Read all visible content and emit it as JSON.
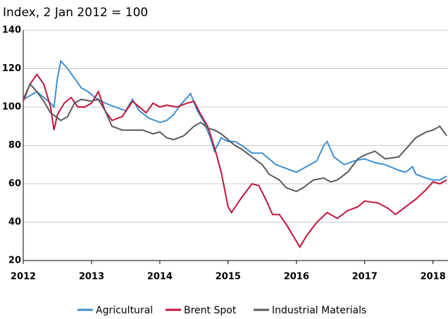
{
  "chart_data": {
    "type": "line",
    "title": "Index, 2 Jan 2012 = 100",
    "xlim": [
      2012,
      2018.22
    ],
    "xticks": [
      2012,
      2013,
      2014,
      2015,
      2016,
      2017,
      2018
    ],
    "ylim": [
      20,
      140
    ],
    "yticks": [
      20,
      40,
      60,
      80,
      100,
      120,
      140
    ],
    "grid": true,
    "legend": "bottom",
    "series": [
      {
        "name": "Agricultural",
        "color": "#3d8fd1",
        "x": [
          2012.0,
          2012.1,
          2012.2,
          2012.3,
          2012.4,
          2012.45,
          2012.5,
          2012.55,
          2012.65,
          2012.75,
          2012.85,
          2012.95,
          2013.05,
          2013.2,
          2013.35,
          2013.5,
          2013.6,
          2013.7,
          2013.85,
          2014.0,
          2014.1,
          2014.2,
          2014.3,
          2014.4,
          2014.45,
          2014.55,
          2014.65,
          2014.75,
          2014.8,
          2014.9,
          2015.0,
          2015.1,
          2015.2,
          2015.35,
          2015.5,
          2015.6,
          2015.7,
          2015.85,
          2016.0,
          2016.15,
          2016.3,
          2016.4,
          2016.45,
          2016.55,
          2016.7,
          2016.85,
          2017.0,
          2017.15,
          2017.3,
          2017.5,
          2017.6,
          2017.7,
          2017.75,
          2017.9,
          2018.0,
          2018.1,
          2018.2
        ],
        "values": [
          104,
          106,
          108,
          105,
          102,
          100,
          115,
          124,
          120,
          115,
          110,
          108,
          105,
          102,
          100,
          98,
          104,
          98,
          94,
          92,
          93,
          96,
          101,
          105,
          107,
          98,
          92,
          83,
          77,
          84,
          82,
          82,
          80,
          76,
          76,
          73,
          70,
          68,
          66,
          69,
          72,
          80,
          82,
          74,
          70,
          72,
          73,
          71,
          70,
          67,
          66,
          69,
          65,
          63,
          62,
          62,
          64
        ]
      },
      {
        "name": "Brent Spot",
        "color": "#c0143c",
        "x": [
          2012.0,
          2012.1,
          2012.2,
          2012.3,
          2012.4,
          2012.45,
          2012.5,
          2012.6,
          2012.7,
          2012.8,
          2012.9,
          2013.0,
          2013.1,
          2013.2,
          2013.3,
          2013.45,
          2013.6,
          2013.7,
          2013.8,
          2013.9,
          2014.0,
          2014.1,
          2014.25,
          2014.4,
          2014.5,
          2014.6,
          2014.7,
          2014.8,
          2014.9,
          2015.0,
          2015.05,
          2015.2,
          2015.35,
          2015.45,
          2015.55,
          2015.65,
          2015.75,
          2015.85,
          2016.0,
          2016.05,
          2016.15,
          2016.3,
          2016.45,
          2016.6,
          2016.75,
          2016.9,
          2017.0,
          2017.2,
          2017.35,
          2017.45,
          2017.6,
          2017.75,
          2017.9,
          2018.0,
          2018.1,
          2018.2
        ],
        "values": [
          103,
          112,
          117,
          112,
          100,
          88,
          96,
          102,
          105,
          100,
          100,
          102,
          108,
          98,
          93,
          95,
          103,
          100,
          97,
          102,
          100,
          101,
          100,
          102,
          103,
          96,
          90,
          79,
          66,
          48,
          45,
          53,
          60,
          59,
          52,
          44,
          44,
          39,
          30,
          27,
          33,
          40,
          45,
          42,
          46,
          48,
          51,
          50,
          47,
          44,
          48,
          52,
          57,
          61,
          60,
          62
        ]
      },
      {
        "name": "Industrial Materials",
        "color": "#5a5a5a",
        "x": [
          2012.0,
          2012.1,
          2012.2,
          2012.3,
          2012.4,
          2012.55,
          2012.65,
          2012.75,
          2012.85,
          2013.0,
          2013.1,
          2013.2,
          2013.3,
          2013.45,
          2013.6,
          2013.75,
          2013.9,
          2014.0,
          2014.1,
          2014.2,
          2014.35,
          2014.5,
          2014.6,
          2014.7,
          2014.8,
          2014.9,
          2015.0,
          2015.1,
          2015.2,
          2015.35,
          2015.5,
          2015.6,
          2015.75,
          2015.85,
          2016.0,
          2016.1,
          2016.25,
          2016.4,
          2016.5,
          2016.6,
          2016.75,
          2016.9,
          2017.0,
          2017.15,
          2017.3,
          2017.5,
          2017.6,
          2017.75,
          2017.9,
          2018.0,
          2018.1,
          2018.2
        ],
        "values": [
          104,
          112,
          108,
          103,
          97,
          93,
          95,
          102,
          104,
          103,
          104,
          98,
          90,
          88,
          88,
          88,
          86,
          87,
          84,
          83,
          85,
          90,
          92,
          89,
          88,
          86,
          83,
          80,
          78,
          74,
          70,
          65,
          62,
          58,
          56,
          58,
          62,
          63,
          61,
          62,
          66,
          73,
          75,
          77,
          73,
          74,
          78,
          84,
          87,
          88,
          90,
          85
        ]
      }
    ]
  }
}
